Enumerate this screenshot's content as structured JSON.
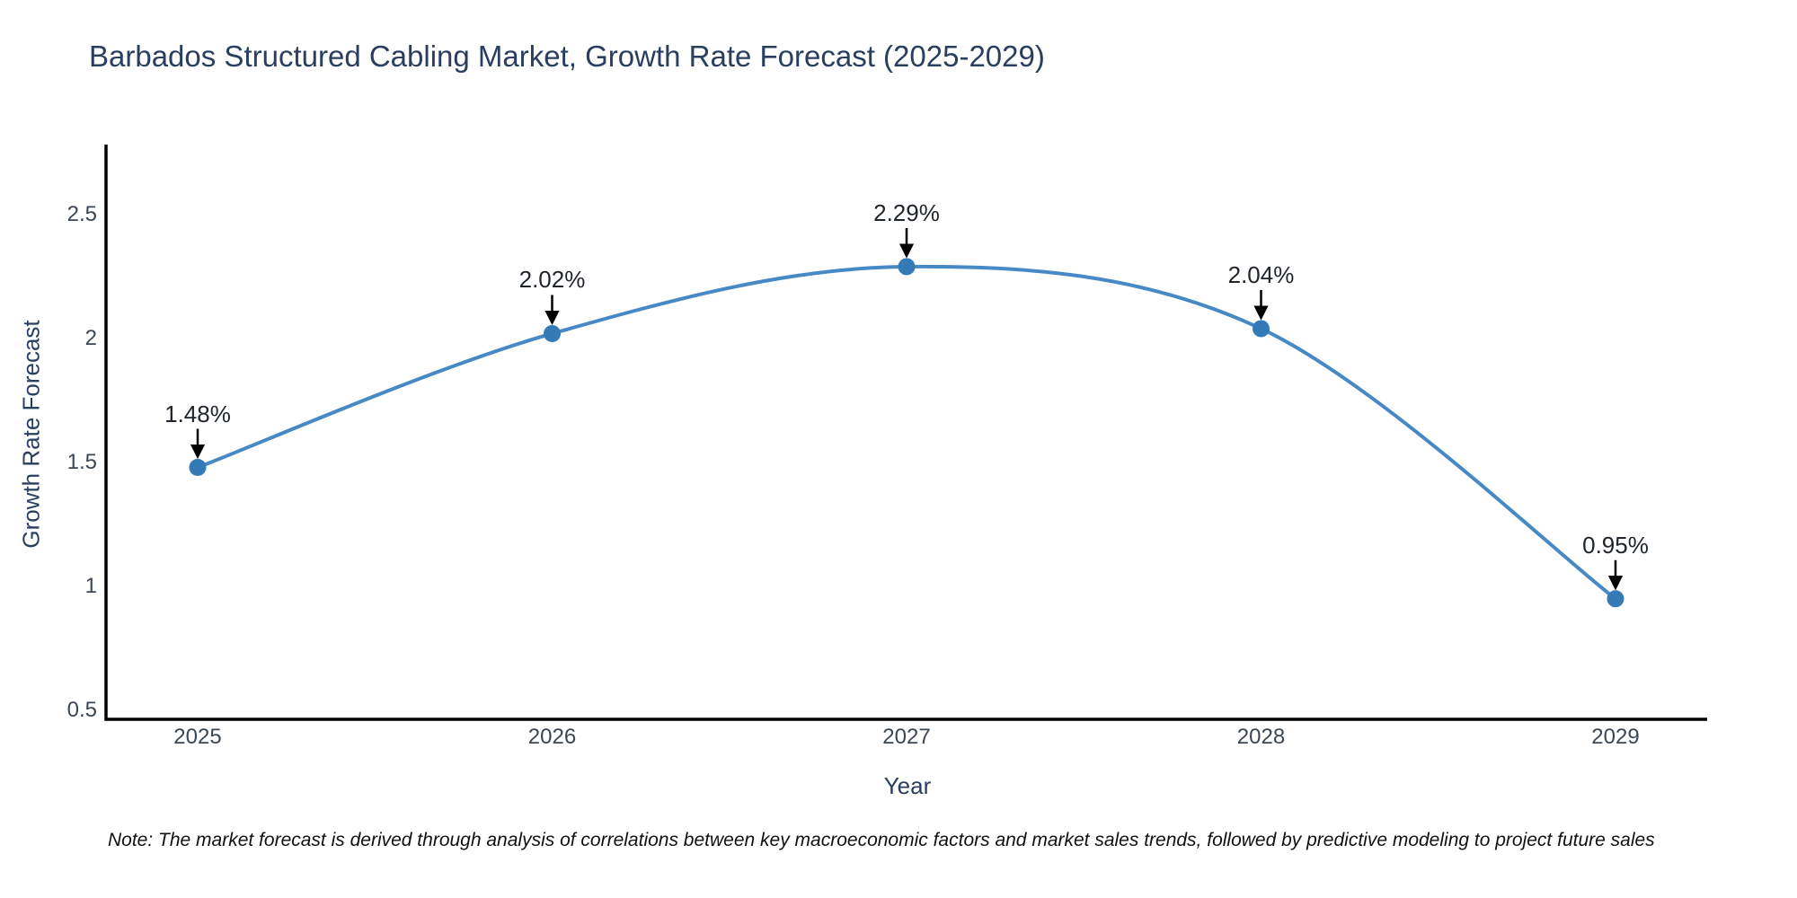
{
  "chart_data": {
    "type": "line",
    "line_shape": "spline",
    "grid": false,
    "legend": "none",
    "title": "Barbados Structured Cabling Market, Growth Rate Forecast (2025-2029)",
    "xlabel": "Year",
    "ylabel": "Growth Rate Forecast",
    "x": [
      "2025",
      "2026",
      "2027",
      "2028",
      "2029"
    ],
    "y": [
      1.48,
      2.02,
      2.29,
      2.04,
      0.95
    ],
    "point_labels": [
      "1.48%",
      "2.02%",
      "2.29%",
      "2.04%",
      "0.95%"
    ],
    "ytick_labels": [
      "2.5",
      "2",
      "1.5",
      "1",
      "0.5"
    ],
    "ytick_values": [
      2.5,
      2.0,
      1.5,
      1.0,
      0.5
    ],
    "ylim": [
      0.46,
      2.82
    ],
    "note": "Note: The market forecast is derived through analysis of correlations between key macroeconomic factors and market sales trends, followed by predictive modeling to project future sales",
    "colors": {
      "line": "#4789c4",
      "marker": "#337ab7",
      "arrow": "#000000",
      "axis": "#000000",
      "title_text": "#2a3f5f",
      "tick_text": "#3b4754",
      "note_text": "#111111"
    }
  }
}
